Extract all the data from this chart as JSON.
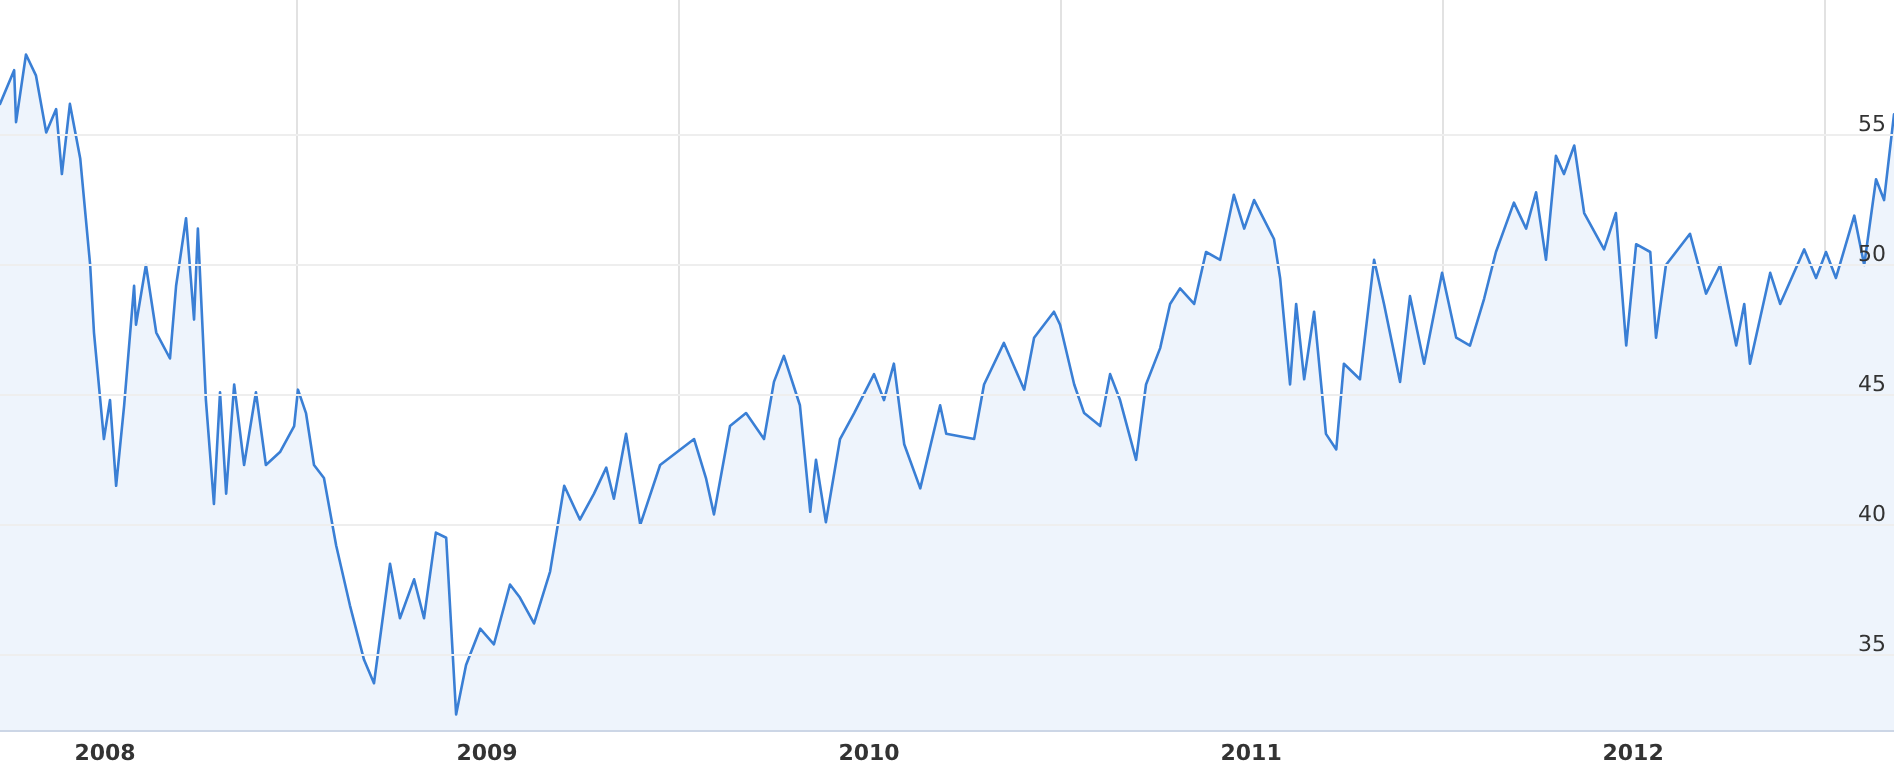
{
  "chart_data": {
    "type": "area",
    "color": "#3a7fd5",
    "grid": true,
    "marker": "none",
    "line_style": "solid",
    "x": [
      2008.225,
      2008.262,
      2008.267,
      2008.293,
      2008.319,
      2008.346,
      2008.372,
      2008.387,
      2008.408,
      2008.435,
      2008.461,
      2008.471,
      2008.497,
      2008.513,
      2008.529,
      2008.55,
      2008.576,
      2008.581,
      2008.607,
      2008.634,
      2008.67,
      2008.686,
      2008.712,
      2008.733,
      2008.743,
      2008.764,
      2008.785,
      2008.801,
      2008.817,
      2008.838,
      2008.864,
      2008.895,
      2008.921,
      2008.958,
      2008.995,
      2009.005,
      2009.026,
      2009.047,
      2009.073,
      2009.105,
      2009.141,
      2009.178,
      2009.204,
      2009.246,
      2009.272,
      2009.309,
      2009.335,
      2009.366,
      2009.393,
      2009.419,
      2009.445,
      2009.482,
      2009.518,
      2009.56,
      2009.586,
      2009.623,
      2009.665,
      2009.702,
      2009.743,
      2009.78,
      2009.812,
      2009.832,
      2009.864,
      2009.901,
      2009.953,
      2010.042,
      2010.073,
      2010.094,
      2010.136,
      2010.178,
      2010.225,
      2010.251,
      2010.277,
      2010.319,
      2010.346,
      2010.361,
      2010.387,
      2010.424,
      2010.461,
      2010.513,
      2010.539,
      2010.565,
      2010.592,
      2010.634,
      2010.686,
      2010.702,
      2010.775,
      2010.801,
      2010.853,
      2010.906,
      2010.932,
      2010.984,
      2011.0,
      2011.037,
      2011.063,
      2011.105,
      2011.131,
      2011.157,
      2011.199,
      2011.225,
      2011.262,
      2011.288,
      2011.314,
      2011.351,
      2011.382,
      2011.419,
      2011.455,
      2011.482,
      2011.508,
      2011.56,
      2011.576,
      2011.602,
      2011.618,
      2011.639,
      2011.665,
      2011.696,
      2011.723,
      2011.743,
      2011.785,
      2011.822,
      2011.848,
      2011.89,
      2011.916,
      2011.953,
      2012.0,
      2012.037,
      2012.073,
      2012.11,
      2012.141,
      2012.188,
      2012.22,
      2012.246,
      2012.272,
      2012.298,
      2012.319,
      2012.346,
      2012.372,
      2012.424,
      2012.455,
      2012.482,
      2012.508,
      2012.545,
      2012.56,
      2012.586,
      2012.649,
      2012.691,
      2012.728,
      2012.77,
      2012.791,
      2012.806,
      2012.859,
      2012.885,
      2012.948,
      2012.979,
      2013.005,
      2013.031,
      2013.079,
      2013.105,
      2013.136,
      2013.157,
      2013.183
    ],
    "values": [
      56.2,
      57.5,
      55.5,
      58.1,
      57.3,
      55.1,
      56.0,
      53.5,
      56.2,
      54.1,
      50.0,
      47.4,
      43.3,
      44.8,
      41.5,
      44.6,
      49.2,
      47.7,
      50.0,
      47.4,
      46.4,
      49.2,
      51.8,
      47.9,
      51.4,
      44.8,
      40.8,
      45.1,
      41.2,
      45.4,
      42.3,
      45.1,
      42.3,
      42.8,
      43.8,
      45.2,
      44.3,
      42.3,
      41.8,
      39.2,
      36.9,
      34.8,
      33.9,
      38.5,
      36.4,
      37.9,
      36.4,
      39.7,
      39.5,
      32.7,
      34.6,
      36.0,
      35.4,
      37.7,
      37.2,
      36.2,
      38.2,
      41.5,
      40.2,
      41.2,
      42.2,
      41.0,
      43.5,
      40.0,
      42.3,
      43.3,
      41.8,
      40.4,
      43.8,
      44.3,
      43.3,
      45.5,
      46.5,
      44.6,
      40.5,
      42.5,
      40.1,
      43.3,
      44.3,
      45.8,
      44.8,
      46.2,
      43.1,
      41.4,
      44.6,
      43.5,
      43.3,
      45.4,
      47.0,
      45.2,
      47.2,
      48.2,
      47.7,
      45.4,
      44.3,
      43.8,
      45.8,
      44.8,
      42.5,
      45.4,
      46.8,
      48.5,
      49.1,
      48.5,
      50.5,
      50.2,
      52.7,
      51.4,
      52.5,
      51.0,
      49.5,
      45.4,
      48.5,
      45.6,
      48.2,
      43.5,
      42.9,
      46.2,
      45.6,
      50.2,
      48.5,
      45.5,
      48.8,
      46.2,
      49.7,
      47.2,
      46.9,
      48.7,
      50.5,
      52.4,
      51.4,
      52.8,
      50.2,
      54.2,
      53.5,
      54.6,
      52.0,
      50.6,
      52.0,
      46.9,
      50.8,
      50.5,
      47.2,
      50.0,
      51.2,
      48.9,
      50.0,
      46.9,
      48.5,
      46.2,
      49.7,
      48.5,
      50.6,
      49.5,
      50.5,
      49.5,
      51.9,
      50.0,
      53.3,
      52.5,
      55.8
    ],
    "xlim": [
      2008.225,
      2013.183
    ],
    "xticks": [
      {
        "value": 2008.5,
        "label": "2008"
      },
      {
        "value": 2009,
        "label": null
      },
      {
        "value": 2009.5,
        "label": "2009"
      },
      {
        "value": 2010,
        "label": null
      },
      {
        "value": 2010.5,
        "label": "2010"
      },
      {
        "value": 2011,
        "label": null
      },
      {
        "value": 2011.5,
        "label": "2011"
      },
      {
        "value": 2012,
        "label": null
      },
      {
        "value": 2012.5,
        "label": "2012"
      },
      {
        "value": 2013,
        "label": null
      }
    ],
    "ylim": [
      32.1,
      60.2
    ],
    "yticks": [
      35,
      40,
      45,
      50,
      55
    ]
  }
}
